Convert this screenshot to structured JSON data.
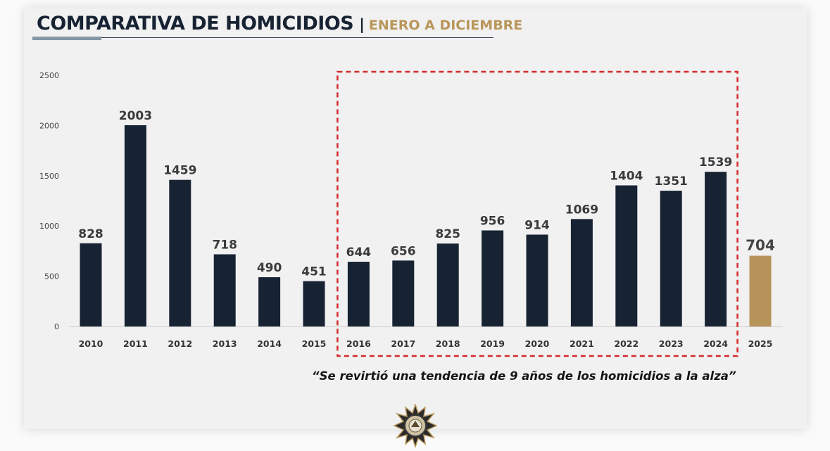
{
  "title": {
    "main": "COMPARATIVA DE HOMICIDIOS",
    "separator": "|",
    "subtitle": "ENERO A DICIEMBRE"
  },
  "quote": "“Se revirtió una tendencia de 9 años de los homicidios a la alza”",
  "colors": {
    "bar": "#172232",
    "highlight_bar": "#b69459",
    "highlight_box": "#d42a2a",
    "title": "#172232",
    "subtitle": "#b9975b"
  },
  "chart_data": {
    "type": "bar",
    "title": "COMPARATIVA DE HOMICIDIOS | ENERO A DICIEMBRE",
    "xlabel": "",
    "ylabel": "",
    "categories": [
      "2010",
      "2011",
      "2012",
      "2013",
      "2014",
      "2015",
      "2016",
      "2017",
      "2018",
      "2019",
      "2020",
      "2021",
      "2022",
      "2023",
      "2024",
      "2025"
    ],
    "values": [
      828,
      2003,
      1459,
      718,
      490,
      451,
      644,
      656,
      825,
      956,
      914,
      1069,
      1404,
      1351,
      1539,
      704
    ],
    "highlight_category": "2025",
    "highlighted_range": [
      "2016",
      "2024"
    ],
    "ylim": [
      0,
      2500
    ],
    "yticks": [
      0,
      500,
      1000,
      1500,
      2000,
      2500
    ],
    "grid": false
  }
}
